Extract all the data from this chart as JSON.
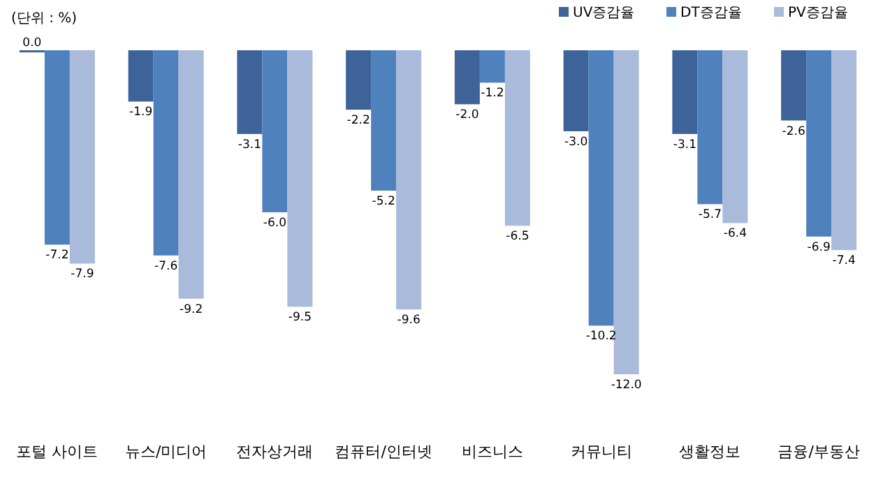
{
  "chart_data": {
    "type": "bar",
    "categories": [
      "포털 사이트",
      "뉴스/미디어",
      "전자상거래",
      "컴퓨터/인터넷",
      "비즈니스",
      "커뮤니티",
      "생활정보",
      "금융/부동산"
    ],
    "series": [
      {
        "name": "UV증감율",
        "color": "#3d6399",
        "values": [
          0.0,
          -1.9,
          -3.1,
          -2.2,
          -2.0,
          -3.0,
          -3.1,
          -2.6
        ],
        "value_labels": [
          "0.0",
          "-1.9",
          "-3.1",
          "-2.2",
          "-2.0",
          "-3.0",
          "-3.1",
          "-2.6"
        ]
      },
      {
        "name": "DT증감율",
        "color": "#4f81bd",
        "values": [
          -7.2,
          -7.6,
          -6.0,
          -5.2,
          -1.2,
          -10.2,
          -5.7,
          -6.9
        ],
        "value_labels": [
          "-7.2",
          "-7.6",
          "-6.0",
          "-5.2",
          "-1.2",
          "-10.2",
          "-5.7",
          "-6.9"
        ]
      },
      {
        "name": "PV증감율",
        "color": "#aabada",
        "values": [
          -7.9,
          -9.2,
          -9.5,
          -9.6,
          -6.5,
          -12.0,
          -6.4,
          -7.4
        ],
        "value_labels": [
          "-7.9",
          "-9.2",
          "-9.5",
          "-9.6",
          "-6.5",
          "-12.0",
          "-6.4",
          "-7.4"
        ]
      }
    ],
    "legend": "top right",
    "annotations": [
      "(단위 : %)"
    ]
  }
}
